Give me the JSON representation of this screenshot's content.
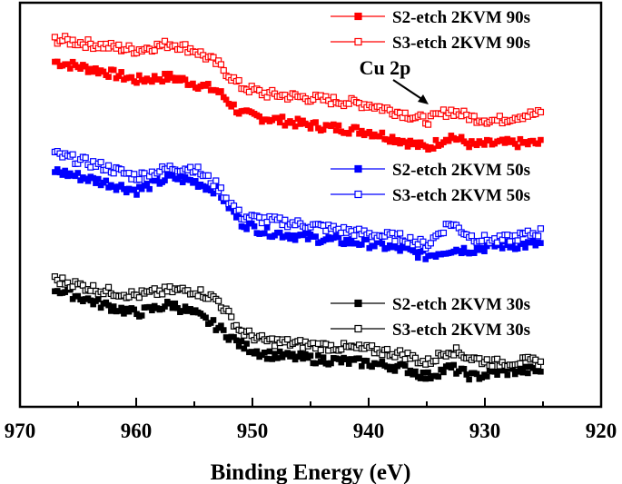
{
  "chart_data": {
    "type": "scatter",
    "title": "",
    "xlabel": "Binding Energy (eV)",
    "ylabel": "",
    "xlim": [
      970,
      920
    ],
    "ylim": [
      0,
      100
    ],
    "x_reversed": true,
    "xticks": [
      "970",
      "960",
      "950",
      "940",
      "930",
      "920"
    ],
    "yticks_shown": false,
    "grid": false,
    "legend_placement": "right, grouped beside each pair of series",
    "x": [
      967,
      963,
      960,
      957,
      955,
      953,
      951,
      949,
      945,
      940,
      937,
      935,
      933,
      931,
      929,
      927,
      925
    ],
    "series": [
      {
        "name": "S2-etch 2KVM 90s",
        "color": "#ff0000",
        "marker": "filled-square",
        "values": [
          85.4,
          83.1,
          80.9,
          81.6,
          80,
          78.2,
          72.6,
          71.5,
          69.7,
          68.1,
          65.8,
          64,
          67,
          64.7,
          65.2,
          65.2,
          65.2
        ]
      },
      {
        "name": "S3-etch 2KVM 90s",
        "color": "#ff0000",
        "marker": "open-square",
        "values": [
          91,
          89.4,
          88.3,
          89.9,
          88.3,
          84.9,
          79.3,
          77.5,
          76.4,
          74.8,
          72.6,
          70.8,
          73.3,
          71.5,
          70.8,
          72.1,
          72.6
        ]
      },
      {
        "name": "S2-etch 2KVM 50s",
        "color": "#0000ff",
        "marker": "filled-square",
        "values": [
          58.4,
          55.7,
          53.5,
          56.9,
          55.7,
          53.5,
          45.6,
          43.4,
          41.8,
          40.4,
          38.9,
          37.3,
          38.9,
          38.9,
          40,
          40,
          40.4
        ]
      },
      {
        "name": "S3-etch 2KVM 50s",
        "color": "#0000ff",
        "marker": "open-square",
        "values": [
          62.5,
          59.6,
          56.9,
          59.1,
          59.1,
          54.6,
          47.2,
          46.3,
          44.9,
          42.7,
          41.8,
          40,
          45.6,
          41.8,
          41.1,
          42.2,
          43.4
        ]
      },
      {
        "name": "S2-etch 2KVM 30s",
        "color": "#000000",
        "marker": "filled-square",
        "values": [
          29.2,
          25.4,
          23.1,
          25.4,
          23.1,
          19.8,
          15.3,
          13,
          11.9,
          10.8,
          9.7,
          7.4,
          9.7,
          7.4,
          8.5,
          9,
          9
        ]
      },
      {
        "name": "S3-etch 2KVM 30s",
        "color": "#000000",
        "marker": "open-square",
        "values": [
          31.5,
          28.8,
          27.6,
          28.8,
          28.8,
          26.5,
          18.7,
          16.4,
          15.3,
          14.2,
          13,
          10.8,
          14.2,
          11.9,
          10.8,
          11.2,
          11.2
        ]
      }
    ],
    "annotations": [
      {
        "text": "Cu 2p",
        "points_to_x": 933
      }
    ]
  }
}
